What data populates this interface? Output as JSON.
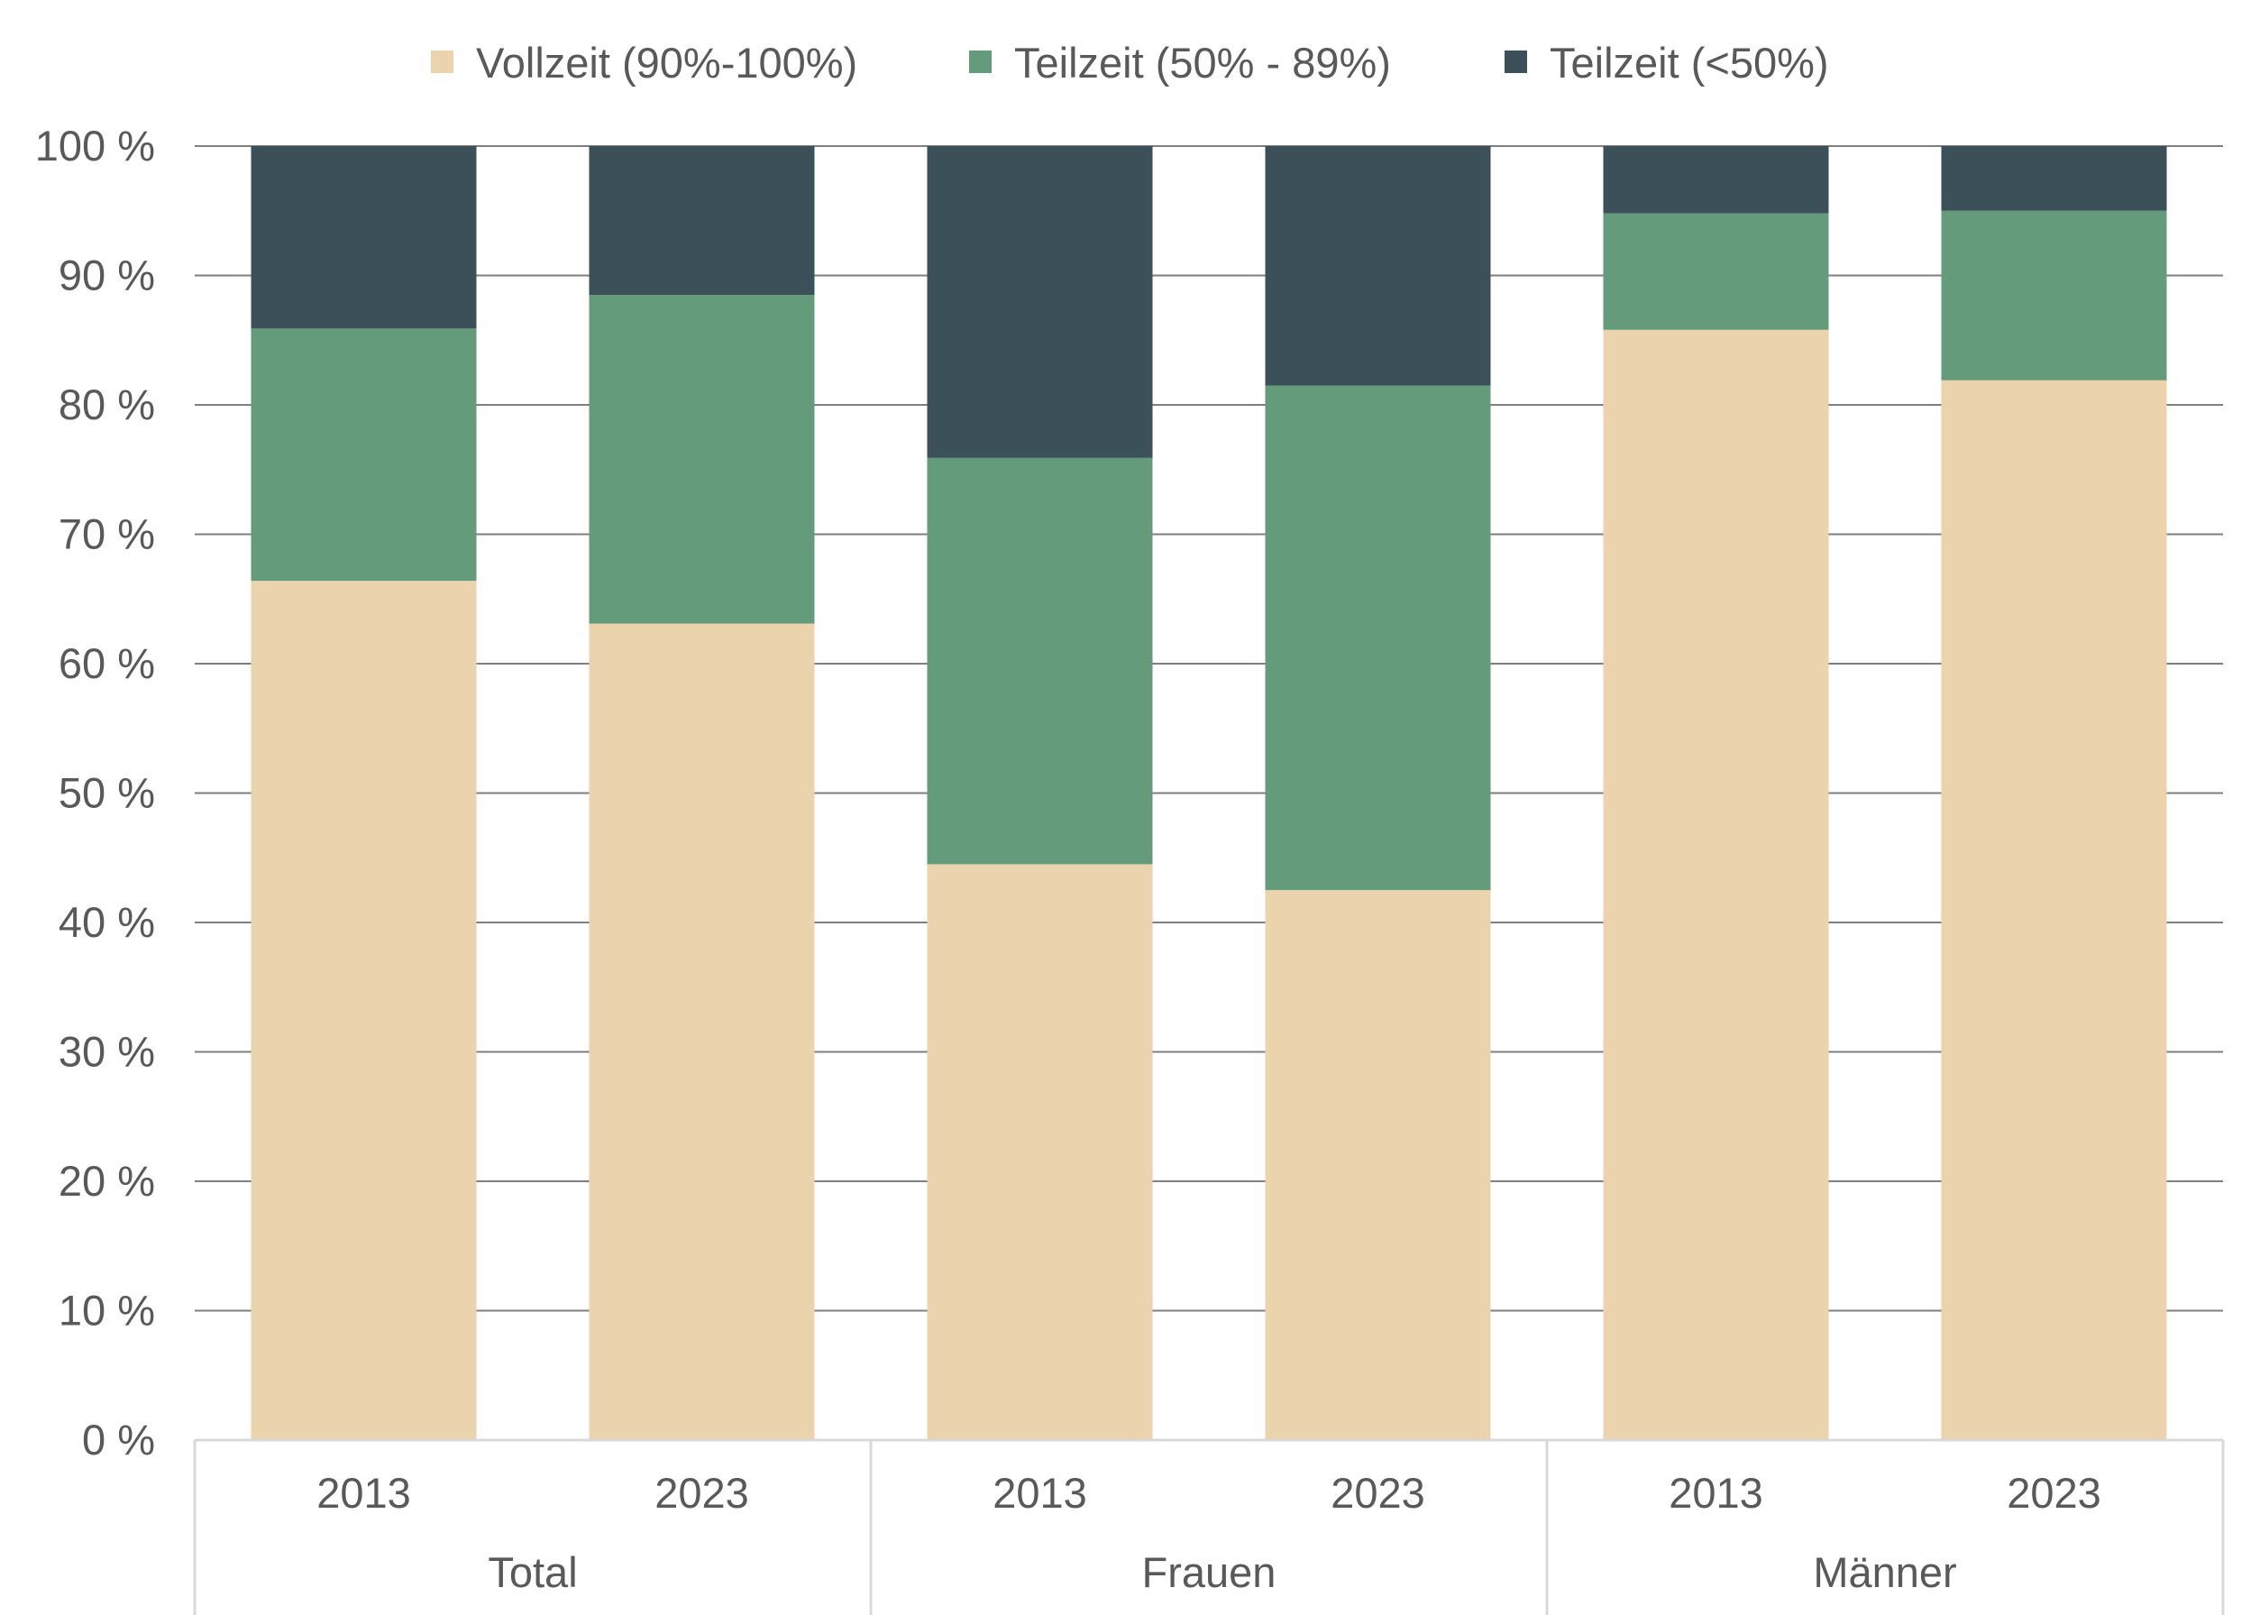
{
  "chart_data": {
    "type": "bar",
    "stacked": true,
    "legend_position": "top",
    "grid": true,
    "ylim": [
      0,
      100
    ],
    "y_ticks": [
      "0 %",
      "10 %",
      "20 %",
      "30 %",
      "40 %",
      "50 %",
      "60 %",
      "70 %",
      "80 %",
      "90 %",
      "100 %"
    ],
    "groups": [
      "Total",
      "Frauen",
      "Männer"
    ],
    "categories": [
      "2013",
      "2023",
      "2013",
      "2023",
      "2013",
      "2023"
    ],
    "series": [
      {
        "name": "Vollzeit (90%-100%)",
        "color": "#ebd3ad",
        "values": [
          66.4,
          63.1,
          44.5,
          42.5,
          85.8,
          81.9
        ]
      },
      {
        "name": "Teilzeit (50% - 89%)",
        "color": "#649b7a",
        "values": [
          19.5,
          25.4,
          31.4,
          39.0,
          9.0,
          13.1
        ]
      },
      {
        "name": "Teilzeit (<50%)",
        "color": "#3c505a",
        "values": [
          14.1,
          11.5,
          24.1,
          18.5,
          5.2,
          5.0
        ]
      }
    ]
  }
}
